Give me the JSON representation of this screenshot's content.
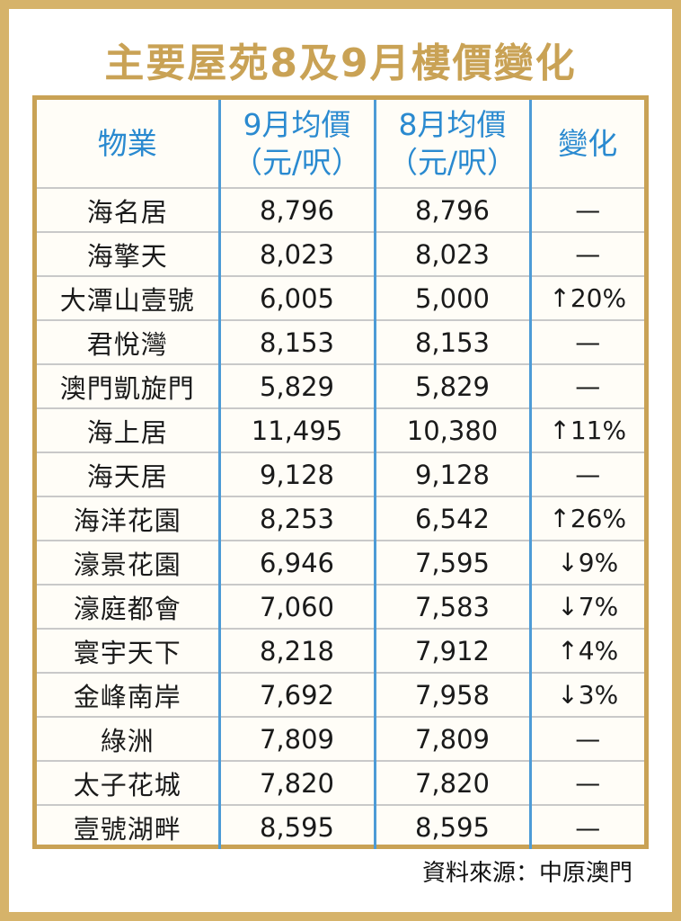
{
  "chart_data": {
    "type": "table",
    "title": "主要屋苑8及9月樓價變化",
    "columns": [
      {
        "line1": "物業",
        "line2": ""
      },
      {
        "line1": "9月均價",
        "line2": "（元/呎）"
      },
      {
        "line1": "8月均價",
        "line2": "（元/呎）"
      },
      {
        "line1": "變化",
        "line2": ""
      }
    ],
    "rows": [
      {
        "name": "海名居",
        "sep": "8,796",
        "aug": "8,796",
        "change": "—"
      },
      {
        "name": "海擎天",
        "sep": "8,023",
        "aug": "8,023",
        "change": "—"
      },
      {
        "name": "大潭山壹號",
        "sep": "6,005",
        "aug": "5,000",
        "change": "↑20%"
      },
      {
        "name": "君悅灣",
        "sep": "8,153",
        "aug": "8,153",
        "change": "—"
      },
      {
        "name": "澳門凱旋門",
        "sep": "5,829",
        "aug": "5,829",
        "change": "—"
      },
      {
        "name": "海上居",
        "sep": "11,495",
        "aug": "10,380",
        "change": "↑11%"
      },
      {
        "name": "海天居",
        "sep": "9,128",
        "aug": "9,128",
        "change": "—"
      },
      {
        "name": "海洋花園",
        "sep": "8,253",
        "aug": "6,542",
        "change": "↑26%"
      },
      {
        "name": "濠景花園",
        "sep": "6,946",
        "aug": "7,595",
        "change": "↓9%"
      },
      {
        "name": "濠庭都會",
        "sep": "7,060",
        "aug": "7,583",
        "change": "↓7%"
      },
      {
        "name": "寰宇天下",
        "sep": "8,218",
        "aug": "7,912",
        "change": "↑4%"
      },
      {
        "name": "金峰南岸",
        "sep": "7,692",
        "aug": "7,958",
        "change": "↓3%"
      },
      {
        "name": "綠洲",
        "sep": "7,809",
        "aug": "7,809",
        "change": "—"
      },
      {
        "name": "太子花城",
        "sep": "7,820",
        "aug": "7,820",
        "change": "—"
      },
      {
        "name": "壹號湖畔",
        "sep": "8,595",
        "aug": "8,595",
        "change": "—"
      }
    ],
    "source": "資料來源：中原澳門"
  },
  "colors": {
    "frame": "#d6b36a",
    "title": "#c9a255",
    "header_text": "#2a8ad0",
    "column_divider": "#4d9bd6"
  }
}
